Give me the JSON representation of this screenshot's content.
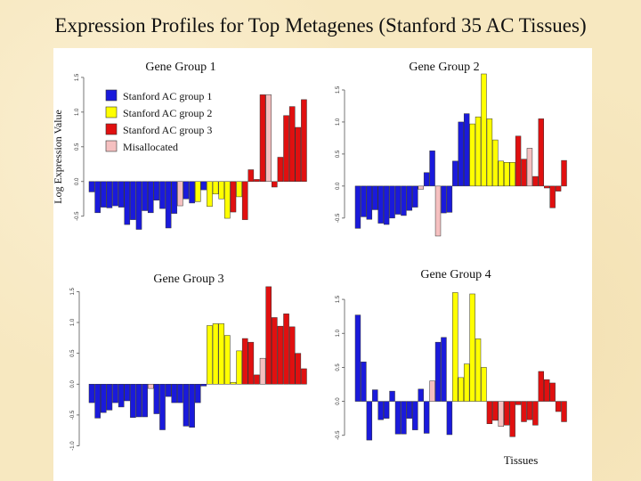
{
  "title": "Expression Profiles for Top Metagenes (Stanford 35 AC Tissues)",
  "ylabel": "Log Expression Value",
  "xlabel": "Tissues",
  "colors": {
    "group1": "#1a1adb",
    "group2": "#ffff00",
    "group3": "#e01010",
    "misallocated": "#f5c0c0"
  },
  "legend": [
    {
      "label": "Stanford AC group 1",
      "group": "group1"
    },
    {
      "label": "Stanford AC group 2",
      "group": "group2"
    },
    {
      "label": "Stanford AC group 3",
      "group": "group3"
    },
    {
      "label": "Misallocated",
      "group": "misallocated"
    }
  ],
  "chart_data": [
    {
      "type": "bar",
      "title": "Gene Group 1",
      "ylim": [
        -0.85,
        1.55
      ],
      "yticks": [
        "-0.5",
        "0.0",
        "0.5",
        "1.0",
        "1.5"
      ],
      "ytick_values": [
        -0.5,
        0.0,
        0.5,
        1.0,
        1.5
      ],
      "groups": [
        "group1",
        "group1",
        "group1",
        "group1",
        "group1",
        "group1",
        "group1",
        "group1",
        "group1",
        "group1",
        "group1",
        "group1",
        "group1",
        "group1",
        "group1",
        "misallocated",
        "group1",
        "group1",
        "group2",
        "group1",
        "group2",
        "group2",
        "group2",
        "group2",
        "group3",
        "group2",
        "group3",
        "group3",
        "group3",
        "group3",
        "misallocated",
        "group3",
        "group3",
        "group3",
        "group3",
        "group3",
        "group3"
      ],
      "values": [
        -0.15,
        -0.45,
        -0.37,
        -0.38,
        -0.35,
        -0.37,
        -0.62,
        -0.55,
        -0.69,
        -0.42,
        -0.45,
        -0.27,
        -0.39,
        -0.67,
        -0.46,
        -0.35,
        -0.25,
        -0.31,
        -0.29,
        -0.12,
        -0.36,
        -0.18,
        -0.25,
        -0.53,
        -0.44,
        -0.22,
        -0.55,
        0.17,
        0.03,
        1.25,
        1.25,
        -0.08,
        0.35,
        0.95,
        1.08,
        0.78,
        1.18
      ]
    },
    {
      "type": "bar",
      "title": "Gene Group 2",
      "ylim": [
        -0.85,
        1.75
      ],
      "yticks": [
        "-0.5",
        "0.0",
        "0.5",
        "1.0",
        "1.5"
      ],
      "ytick_values": [
        -0.5,
        0.0,
        0.5,
        1.0,
        1.5
      ],
      "groups": [
        "group1",
        "group1",
        "group1",
        "group1",
        "group1",
        "group1",
        "group1",
        "group1",
        "group1",
        "group1",
        "group1",
        "misallocated",
        "group1",
        "group1",
        "misallocated",
        "group1",
        "group1",
        "group1",
        "group1",
        "group1",
        "group2",
        "group2",
        "group2",
        "group2",
        "group2",
        "group2",
        "group2",
        "group2",
        "group3",
        "group3",
        "misallocated",
        "group3",
        "group3",
        "group3",
        "group3",
        "group3",
        "group3"
      ],
      "values": [
        -0.66,
        -0.48,
        -0.52,
        -0.37,
        -0.58,
        -0.6,
        -0.5,
        -0.44,
        -0.46,
        -0.38,
        -0.33,
        -0.05,
        0.21,
        0.55,
        -0.78,
        -0.42,
        -0.41,
        0.39,
        1.0,
        1.13,
        0.97,
        1.08,
        1.75,
        1.05,
        0.72,
        0.39,
        0.37,
        0.37,
        0.78,
        0.42,
        0.59,
        0.15,
        1.05,
        -0.03,
        -0.34,
        -0.08,
        0.4
      ]
    },
    {
      "type": "bar",
      "title": "Gene Group 3",
      "ylim": [
        -1.05,
        1.65
      ],
      "yticks": [
        "-1.0",
        "-0.5",
        "0.0",
        "0.5",
        "1.0",
        "1.5"
      ],
      "ytick_values": [
        -1.0,
        -0.5,
        0.0,
        0.5,
        1.0,
        1.5
      ],
      "groups": [
        "group1",
        "group1",
        "group1",
        "group1",
        "group1",
        "group1",
        "group1",
        "group1",
        "group1",
        "group1",
        "misallocated",
        "group1",
        "group1",
        "group1",
        "group1",
        "group1",
        "group1",
        "group1",
        "group1",
        "group1",
        "group2",
        "group2",
        "group2",
        "group2",
        "group2",
        "group2",
        "group3",
        "group3",
        "group3",
        "misallocated",
        "group3",
        "group3",
        "group3",
        "group3",
        "group3",
        "group3",
        "group3"
      ],
      "values": [
        -0.3,
        -0.55,
        -0.46,
        -0.42,
        -0.3,
        -0.37,
        -0.27,
        -0.54,
        -0.53,
        -0.53,
        -0.07,
        -0.48,
        -0.74,
        -0.2,
        -0.3,
        -0.3,
        -0.68,
        -0.7,
        -0.3,
        -0.03,
        0.95,
        0.98,
        0.98,
        0.79,
        0.03,
        0.54,
        0.74,
        0.68,
        0.15,
        0.42,
        1.58,
        1.08,
        0.94,
        1.14,
        0.93,
        0.5,
        0.25
      ]
    },
    {
      "type": "bar",
      "title": "Gene Group 4",
      "ylim": [
        -0.7,
        1.75
      ],
      "yticks": [
        "-0.5",
        "0.0",
        "0.5",
        "1.0",
        "1.5"
      ],
      "ytick_values": [
        -0.5,
        0.0,
        0.5,
        1.0,
        1.5
      ],
      "groups": [
        "group1",
        "group1",
        "group1",
        "group1",
        "group1",
        "group1",
        "group1",
        "group1",
        "group1",
        "group1",
        "group1",
        "group1",
        "group1",
        "misallocated",
        "group1",
        "group1",
        "group1",
        "group2",
        "group2",
        "group2",
        "group2",
        "group2",
        "group2",
        "group3",
        "group3",
        "misallocated",
        "group3",
        "group3",
        "group3",
        "group3",
        "group3",
        "group3",
        "group3",
        "group3",
        "group3",
        "group3",
        "group3"
      ],
      "values": [
        1.27,
        0.58,
        -0.57,
        0.17,
        -0.27,
        -0.25,
        0.15,
        -0.48,
        -0.48,
        -0.25,
        -0.42,
        0.18,
        -0.47,
        0.3,
        0.87,
        0.94,
        -0.49,
        1.6,
        0.35,
        0.55,
        1.58,
        0.92,
        0.5,
        -0.33,
        -0.28,
        -0.37,
        -0.35,
        -0.52,
        -0.05,
        -0.3,
        -0.27,
        -0.35,
        0.44,
        0.32,
        0.27,
        -0.15,
        -0.3
      ]
    }
  ]
}
